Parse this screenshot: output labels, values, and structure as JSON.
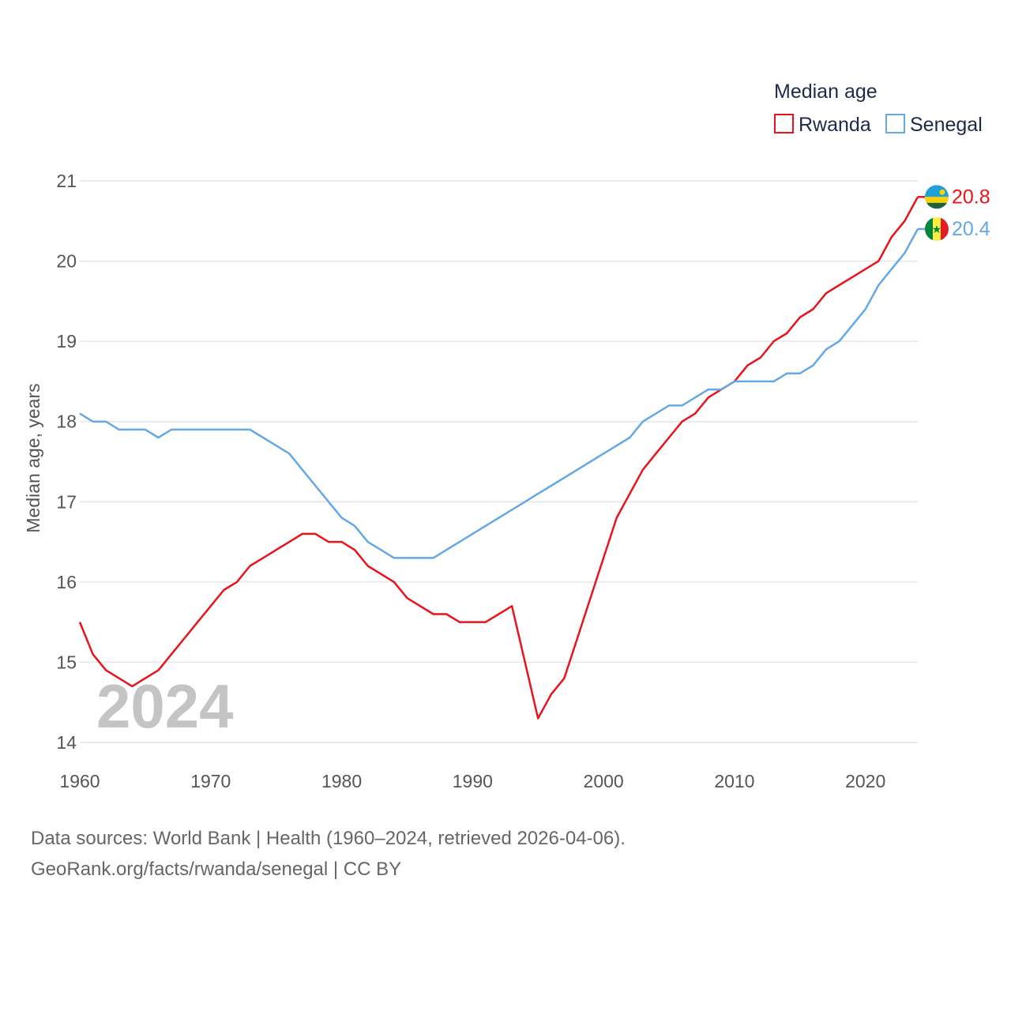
{
  "chart_data": {
    "type": "line",
    "legend_title": "Median age",
    "ylabel": "Median age, years",
    "xlabel": "",
    "xlim": [
      1960,
      2024
    ],
    "ylim": [
      14,
      21
    ],
    "x_ticks": [
      1960,
      1970,
      1980,
      1990,
      2000,
      2010,
      2020
    ],
    "y_ticks": [
      14,
      15,
      16,
      17,
      18,
      19,
      20,
      21
    ],
    "year_watermark": "2024",
    "x": [
      1960,
      1961,
      1962,
      1963,
      1964,
      1965,
      1966,
      1967,
      1968,
      1969,
      1970,
      1971,
      1972,
      1973,
      1974,
      1975,
      1976,
      1977,
      1978,
      1979,
      1980,
      1981,
      1982,
      1983,
      1984,
      1985,
      1986,
      1987,
      1988,
      1989,
      1990,
      1991,
      1992,
      1993,
      1994,
      1995,
      1996,
      1997,
      1998,
      1999,
      2000,
      2001,
      2002,
      2003,
      2004,
      2005,
      2006,
      2007,
      2008,
      2009,
      2010,
      2011,
      2012,
      2013,
      2014,
      2015,
      2016,
      2017,
      2018,
      2019,
      2020,
      2021,
      2022,
      2023,
      2024
    ],
    "series": [
      {
        "name": "Rwanda",
        "color": "#e8141c",
        "end_label": "20.8",
        "values": [
          15.5,
          15.1,
          14.9,
          14.8,
          14.7,
          14.8,
          14.9,
          15.1,
          15.3,
          15.5,
          15.7,
          15.9,
          16.0,
          16.2,
          16.3,
          16.4,
          16.5,
          16.6,
          16.6,
          16.5,
          16.5,
          16.4,
          16.2,
          16.1,
          16.0,
          15.8,
          15.7,
          15.6,
          15.6,
          15.5,
          15.5,
          15.5,
          15.6,
          15.7,
          15.0,
          14.3,
          14.6,
          14.8,
          15.3,
          15.8,
          16.3,
          16.8,
          17.1,
          17.4,
          17.6,
          17.8,
          18.0,
          18.1,
          18.3,
          18.4,
          18.5,
          18.7,
          18.8,
          19.0,
          19.1,
          19.3,
          19.4,
          19.6,
          19.7,
          19.8,
          19.9,
          20.0,
          20.3,
          20.5,
          20.8
        ]
      },
      {
        "name": "Senegal",
        "color": "#64a8e6",
        "end_label": "20.4",
        "values": [
          18.1,
          18.0,
          18.0,
          17.9,
          17.9,
          17.9,
          17.8,
          17.9,
          17.9,
          17.9,
          17.9,
          17.9,
          17.9,
          17.9,
          17.8,
          17.7,
          17.6,
          17.4,
          17.2,
          17.0,
          16.8,
          16.7,
          16.5,
          16.4,
          16.3,
          16.3,
          16.3,
          16.3,
          16.4,
          16.5,
          16.6,
          16.7,
          16.8,
          16.9,
          17.0,
          17.1,
          17.2,
          17.3,
          17.4,
          17.5,
          17.6,
          17.7,
          17.8,
          18.0,
          18.1,
          18.2,
          18.2,
          18.3,
          18.4,
          18.4,
          18.5,
          18.5,
          18.5,
          18.5,
          18.6,
          18.6,
          18.7,
          18.9,
          19.0,
          19.2,
          19.4,
          19.7,
          19.9,
          20.1,
          20.4
        ]
      }
    ]
  },
  "footer": {
    "sources": "Data sources: World Bank | Health (1960–2024, retrieved 2026-04-06).",
    "attribution": "GeoRank.org/facts/rwanda/senegal | CC BY"
  },
  "colors": {
    "rwanda_flag": [
      "#20a0d8",
      "#fad201",
      "#20603d"
    ],
    "senegal_flag": [
      "#00853f",
      "#fdef42",
      "#e31b23"
    ]
  }
}
